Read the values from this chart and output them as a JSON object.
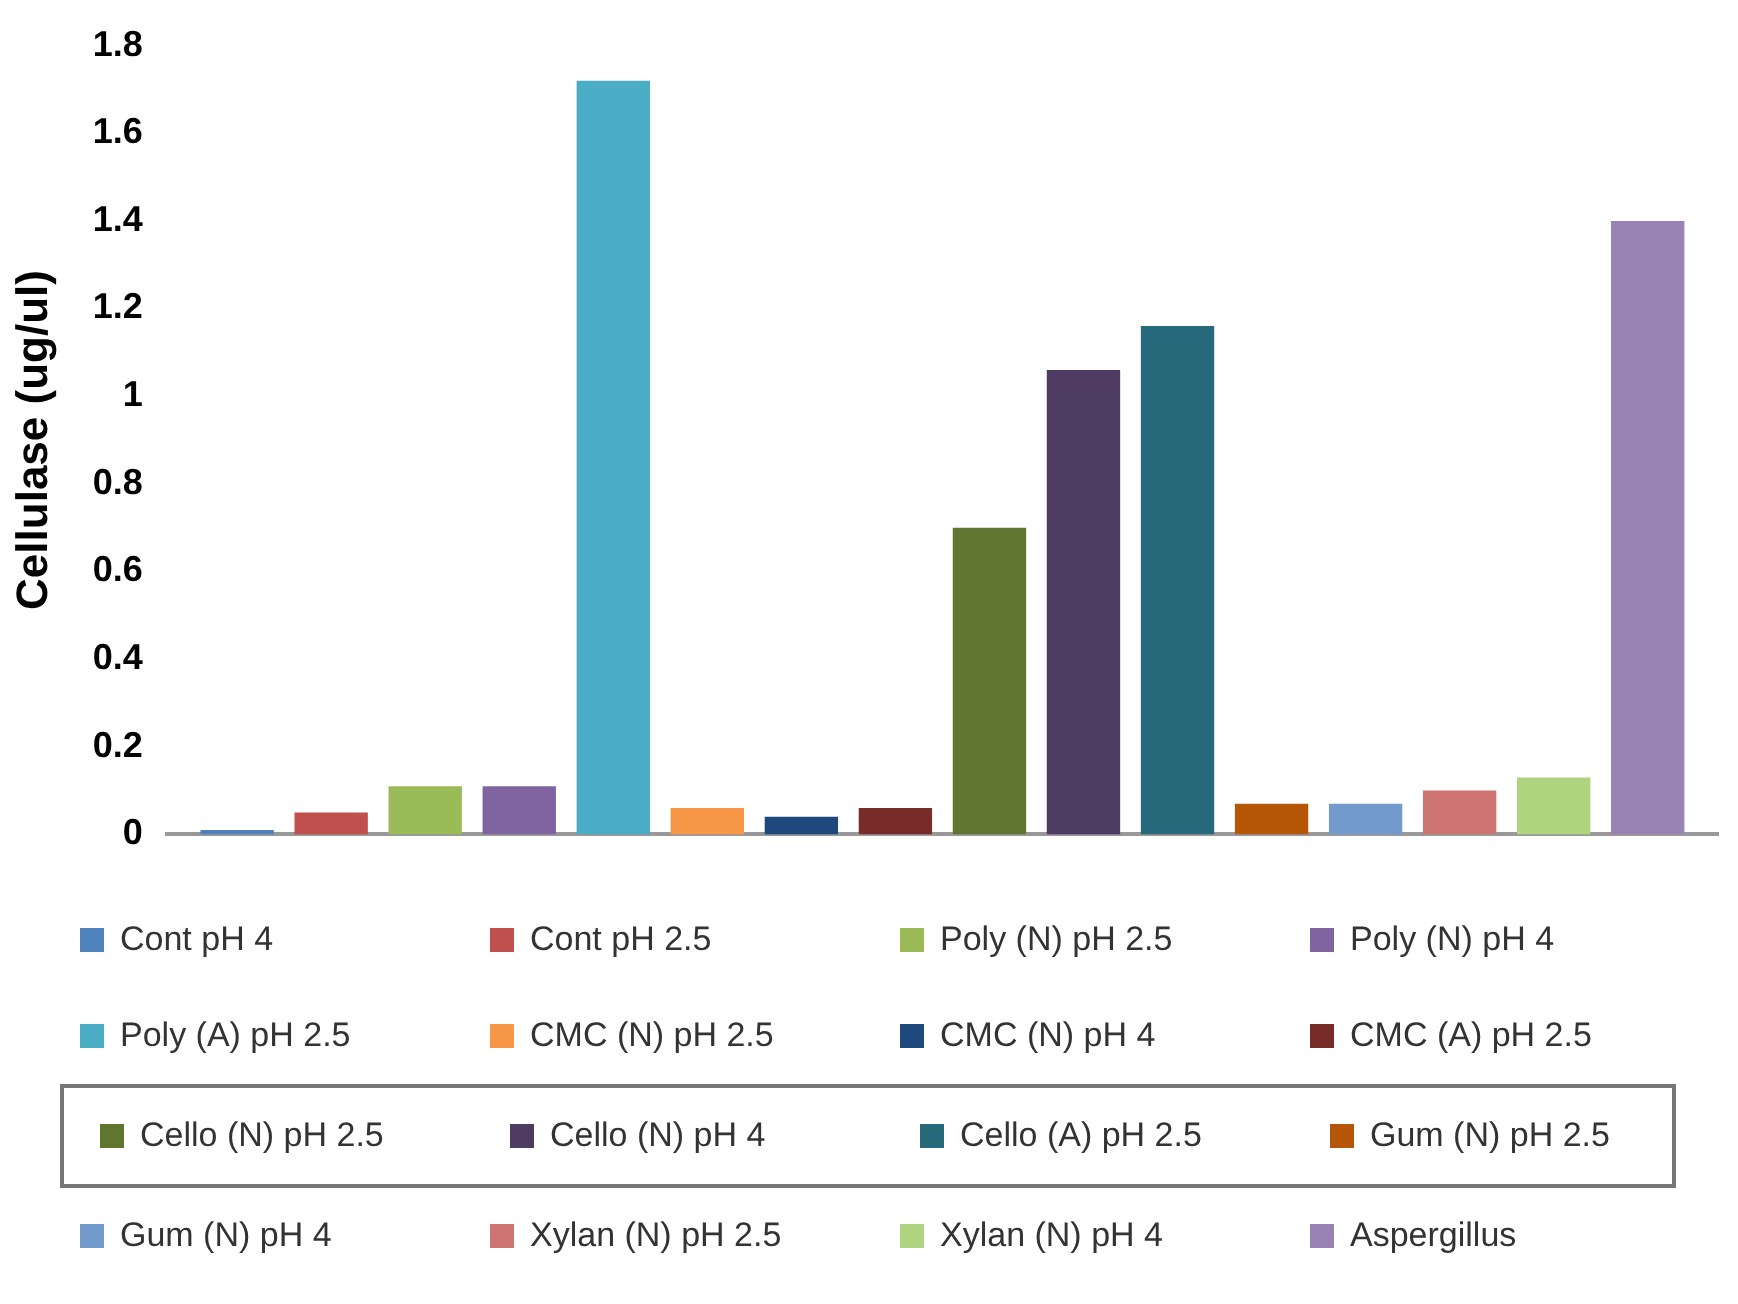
{
  "chart_data": {
    "type": "bar",
    "ylabel": "Cellulase (ug/ul)",
    "categories": [
      null
    ],
    "ylim": [
      0,
      1.8
    ],
    "yticks": [
      0,
      0.2,
      0.4,
      0.6,
      0.8,
      1,
      1.2,
      1.4,
      1.6,
      1.8
    ],
    "grid": false,
    "legend": "bottom",
    "series": [
      {
        "name": "Cont pH 4",
        "color": "#4f81bd",
        "values": [
          0.01
        ]
      },
      {
        "name": "Cont pH 2.5",
        "color": "#c0504d",
        "values": [
          0.05
        ]
      },
      {
        "name": "Poly (N) pH 2.5",
        "color": "#9bbb59",
        "values": [
          0.11
        ]
      },
      {
        "name": "Poly (N) pH 4",
        "color": "#8064a2",
        "values": [
          0.11
        ]
      },
      {
        "name": "Poly (A) pH 2.5",
        "color": "#4bacc6",
        "values": [
          1.72
        ]
      },
      {
        "name": "CMC (N) pH 2.5",
        "color": "#f79646",
        "values": [
          0.06
        ]
      },
      {
        "name": "CMC (N) pH 4",
        "color": "#1f497d",
        "values": [
          0.04
        ]
      },
      {
        "name": "CMC (A) pH 2.5",
        "color": "#772c2a",
        "values": [
          0.06
        ]
      },
      {
        "name": "Cello (N) pH 2.5",
        "color": "#5f7530",
        "values": [
          0.7
        ]
      },
      {
        "name": "Cello (N) pH 4",
        "color": "#4d3b62",
        "values": [
          1.06
        ]
      },
      {
        "name": "Cello (A) pH 2.5",
        "color": "#276a7c",
        "values": [
          1.16
        ]
      },
      {
        "name": "Gum (N) pH 2.5",
        "color": "#b65708",
        "values": [
          0.07
        ]
      },
      {
        "name": "Gum (N) pH 4",
        "color": "#729aca",
        "values": [
          0.07
        ]
      },
      {
        "name": "Xylan (N) pH 2.5",
        "color": "#cd7371",
        "values": [
          0.1
        ]
      },
      {
        "name": "Xylan (N) pH 4",
        "color": "#afd480",
        "values": [
          0.13
        ]
      },
      {
        "name": "Aspergillus",
        "color": "#9983b5",
        "values": [
          1.4
        ]
      }
    ]
  }
}
